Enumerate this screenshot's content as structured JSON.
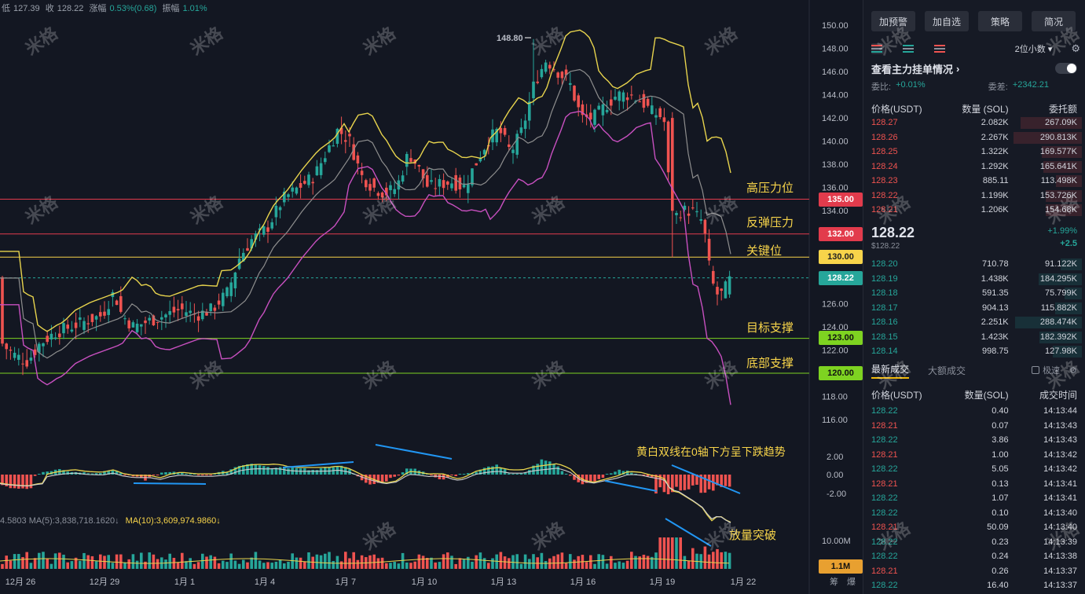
{
  "header": {
    "low_label": "低",
    "low": "127.39",
    "close_label": "收",
    "close": "128.22",
    "change_label": "涨幅",
    "change": "0.53%(0.68)",
    "amplitude_label": "振幅",
    "amplitude": "1.01%"
  },
  "chart_data": {
    "type": "candlestick",
    "y_axis": {
      "ylim": [
        115,
        151
      ],
      "ticks": [
        "150.00",
        "148.00",
        "146.00",
        "144.00",
        "142.00",
        "140.00",
        "138.00",
        "136.00",
        "134.00",
        "126.00",
        "124.00",
        "122.00",
        "118.00",
        "116.00"
      ]
    },
    "x_ticks": [
      "12月 26",
      "12月 29",
      "1月 1",
      "1月 4",
      "1月 7",
      "1月 10",
      "1月 13",
      "1月 16",
      "1月 19",
      "1月 22"
    ],
    "high_marker": "148.80",
    "current_price": "128.22",
    "levels": [
      {
        "value": 135,
        "label": "135.00",
        "note": "高压力位",
        "color": "#e23b4c"
      },
      {
        "value": 132,
        "label": "132.00",
        "note": "反弹压力",
        "color": "#e23b4c"
      },
      {
        "value": 130,
        "label": "130.00",
        "note": "关键位",
        "color": "#f7d44a"
      },
      {
        "value": 123,
        "label": "123.00",
        "note": "目标支撑",
        "color": "#7ed321"
      },
      {
        "value": 120,
        "label": "120.00",
        "note": "底部支撑",
        "color": "#7ed321"
      }
    ],
    "macd_ticks": [
      "2.00",
      "0.00",
      "-2.00"
    ],
    "macd_note": "黄白双线在0轴下方呈下跌趋势",
    "volume_note": "放量突破",
    "volume_ticks": [
      "10.00M"
    ],
    "volume_current": "1.1M",
    "volume_info": "4.5803  MA(5):3,838,718.1620↓",
    "volume_ma10": "MA(10):3,609,974.9860↓",
    "corner_labels": [
      "筹",
      "爆"
    ],
    "colors": {
      "up": "#26a69a",
      "down": "#ef5350",
      "bb_mid": "#8e8e8e",
      "bb_upper": "#e8d44d",
      "bb_lower": "#c850c0",
      "bg": "#131722"
    },
    "watermark": "米格"
  },
  "panel": {
    "buttons": [
      "加预警",
      "加自选",
      "策略",
      "简况"
    ],
    "decimals": "2位小数",
    "depth_title": "查看主力挂单情况",
    "ratio_label": "委比:",
    "ratio_value": "+0.01%",
    "diff_label": "委差:",
    "diff_value": "+2342.21",
    "book_headers": [
      "价格(USDT)",
      "数量 (SOL)",
      "委托额"
    ],
    "asks": [
      [
        "128.27",
        "2.082K",
        "267.09K"
      ],
      [
        "128.26",
        "2.267K",
        "290.813K"
      ],
      [
        "128.25",
        "1.322K",
        "169.577K"
      ],
      [
        "128.24",
        "1.292K",
        "165.641K"
      ],
      [
        "128.23",
        "885.11",
        "113.498K"
      ],
      [
        "128.22",
        "1.199K",
        "153.726K"
      ],
      [
        "128.21",
        "1.206K",
        "154.68K"
      ]
    ],
    "ask_fill": [
      0.52,
      0.58,
      0.34,
      0.33,
      0.22,
      0.31,
      0.31
    ],
    "mid_price": "128.22",
    "mid_sub": "$128.22",
    "mid_pct": "+1.99%",
    "mid_chg": "+2.5",
    "bids": [
      [
        "128.20",
        "710.78",
        "91.122K"
      ],
      [
        "128.19",
        "1.438K",
        "184.295K"
      ],
      [
        "128.18",
        "591.35",
        "75.799K"
      ],
      [
        "128.17",
        "904.13",
        "115.882K"
      ],
      [
        "128.16",
        "2.251K",
        "288.474K"
      ],
      [
        "128.15",
        "1.423K",
        "182.392K"
      ],
      [
        "128.14",
        "998.75",
        "127.98K"
      ]
    ],
    "bid_fill": [
      0.18,
      0.37,
      0.15,
      0.23,
      0.57,
      0.36,
      0.25
    ],
    "tabs": [
      "最新成交",
      "大额成交"
    ],
    "fast_label": "极速",
    "trade_headers": [
      "价格(USDT)",
      "数量(SOL)",
      "成交时间"
    ],
    "trades": [
      [
        "128.22",
        "0.40",
        "14:13:44",
        "up"
      ],
      [
        "128.21",
        "0.07",
        "14:13:43",
        "dn"
      ],
      [
        "128.22",
        "3.86",
        "14:13:43",
        "up"
      ],
      [
        "128.21",
        "1.00",
        "14:13:42",
        "dn"
      ],
      [
        "128.22",
        "5.05",
        "14:13:42",
        "up"
      ],
      [
        "128.21",
        "0.13",
        "14:13:41",
        "dn"
      ],
      [
        "128.22",
        "1.07",
        "14:13:41",
        "up"
      ],
      [
        "128.22",
        "0.10",
        "14:13:40",
        "up"
      ],
      [
        "128.21",
        "50.09",
        "14:13:40",
        "dn"
      ],
      [
        "128.22",
        "0.23",
        "14:13:39",
        "up"
      ],
      [
        "128.22",
        "0.24",
        "14:13:38",
        "up"
      ],
      [
        "128.21",
        "0.26",
        "14:13:37",
        "dn"
      ],
      [
        "128.22",
        "16.40",
        "14:13:37",
        "up"
      ]
    ]
  }
}
